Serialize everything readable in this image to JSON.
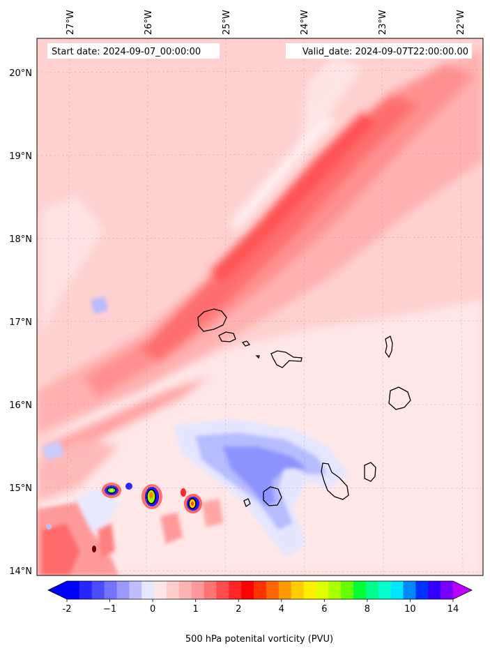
{
  "map": {
    "start_label": "Start date: 2024-09-07_00:00:00",
    "valid_label": "Valid_date: 2024-09-07T22:00:00.00",
    "lon_ticks": [
      {
        "label": "27°W",
        "lon": -27
      },
      {
        "label": "26°W",
        "lon": -26
      },
      {
        "label": "25°W",
        "lon": -25
      },
      {
        "label": "24°W",
        "lon": -24
      },
      {
        "label": "23°W",
        "lon": -23
      },
      {
        "label": "22°W",
        "lon": -22
      }
    ],
    "lat_ticks": [
      {
        "label": "20°N",
        "lat": 20
      },
      {
        "label": "19°N",
        "lat": 19
      },
      {
        "label": "18°N",
        "lat": 18
      },
      {
        "label": "17°N",
        "lat": 17
      },
      {
        "label": "16°N",
        "lat": 16
      },
      {
        "label": "15°N",
        "lat": 15
      },
      {
        "label": "14°N",
        "lat": 14
      }
    ]
  },
  "colorbar": {
    "label": "500 hPa potenital vorticity (PVU)",
    "ticks": [
      "-2",
      "−1",
      "0",
      "1",
      "2",
      "4",
      "6",
      "8",
      "10",
      "14"
    ],
    "colors": [
      "#0000ff",
      "#2626ff",
      "#4c4cff",
      "#7373ff",
      "#9999ff",
      "#bfbfff",
      "#e6e6ff",
      "#ffe6e6",
      "#ffcccc",
      "#ffb3b3",
      "#ff9999",
      "#ff7373",
      "#ff4d4d",
      "#ff2626",
      "#ff0000",
      "#ff3300",
      "#ff6600",
      "#ff9900",
      "#ffcc00",
      "#ffee00",
      "#ddff00",
      "#aaff00",
      "#66ff00",
      "#00ff33",
      "#00ff88",
      "#00ffcc",
      "#00e5ff",
      "#0088ff",
      "#0033ff",
      "#3300ff",
      "#7a00ff"
    ],
    "under_color": "#0000ff",
    "over_color": "#bb00ff"
  }
}
